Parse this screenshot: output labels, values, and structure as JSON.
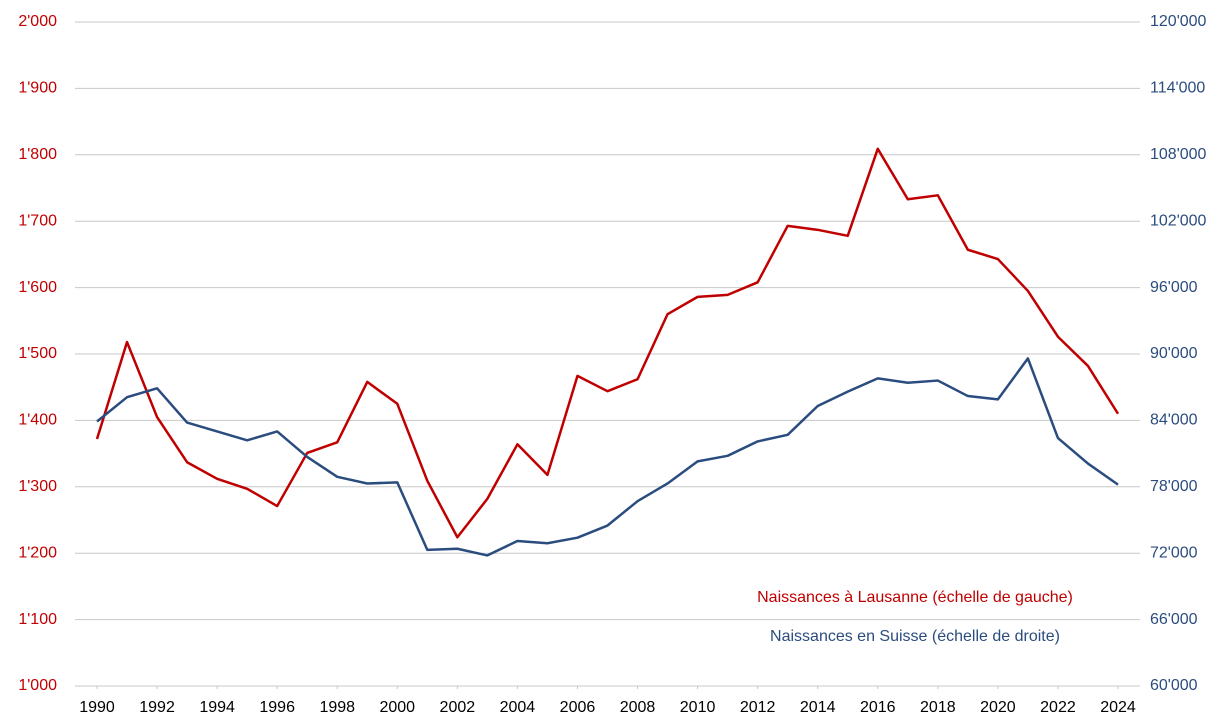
{
  "chart_data": {
    "type": "line",
    "x": [
      1990,
      1991,
      1992,
      1993,
      1994,
      1995,
      1996,
      1997,
      1998,
      1999,
      2000,
      2001,
      2002,
      2003,
      2004,
      2005,
      2006,
      2007,
      2008,
      2009,
      2010,
      2011,
      2012,
      2013,
      2014,
      2015,
      2016,
      2017,
      2018,
      2019,
      2020,
      2021,
      2022,
      2023,
      2024
    ],
    "xlim": [
      1990,
      2024
    ],
    "xticks": [
      1990,
      1992,
      1994,
      1996,
      1998,
      2000,
      2002,
      2004,
      2006,
      2008,
      2010,
      2012,
      2014,
      2016,
      2018,
      2020,
      2022,
      2024
    ],
    "ylim": [
      1000,
      2000
    ],
    "yticks": [
      {
        "value": 1000,
        "label": "1'000"
      },
      {
        "value": 1100,
        "label": "1'100"
      },
      {
        "value": 1200,
        "label": "1'200"
      },
      {
        "value": 1300,
        "label": "1'300"
      },
      {
        "value": 1400,
        "label": "1'400"
      },
      {
        "value": 1500,
        "label": "1'500"
      },
      {
        "value": 1600,
        "label": "1'600"
      },
      {
        "value": 1700,
        "label": "1'700"
      },
      {
        "value": 1800,
        "label": "1'800"
      },
      {
        "value": 1900,
        "label": "1'900"
      },
      {
        "value": 2000,
        "label": "2'000"
      }
    ],
    "y2lim": [
      60000,
      120000
    ],
    "y2ticks": [
      {
        "value": 60000,
        "label": "60'000"
      },
      {
        "value": 66000,
        "label": "66'000"
      },
      {
        "value": 72000,
        "label": "72'000"
      },
      {
        "value": 78000,
        "label": "78'000"
      },
      {
        "value": 84000,
        "label": "84'000"
      },
      {
        "value": 90000,
        "label": "90'000"
      },
      {
        "value": 96000,
        "label": "96'000"
      },
      {
        "value": 102000,
        "label": "102'000"
      },
      {
        "value": 108000,
        "label": "108'000"
      },
      {
        "value": 114000,
        "label": "114'000"
      },
      {
        "value": 120000,
        "label": "120'000"
      }
    ],
    "grid": true,
    "series": [
      {
        "name": "Naissances à Lausanne (échelle de gauche)",
        "color": "#c00000",
        "values": [
          1372,
          1518,
          1405,
          1337,
          1312,
          1297,
          1271,
          1351,
          1367,
          1458,
          1425,
          1309,
          1224,
          1282,
          1364,
          1318,
          1467,
          1444,
          1462,
          1560,
          1586,
          1589,
          1608,
          1693,
          1687,
          1678,
          1809,
          1733,
          1739,
          1657,
          1643,
          1595,
          1526,
          1482,
          1410
        ]
      },
      {
        "name": "Naissances en Suisse (échelle de droite)",
        "color": "#2b4c7e",
        "axis": "y2",
        "values": [
          83900,
          86100,
          86900,
          83800,
          83000,
          82200,
          83000,
          80700,
          78900,
          78300,
          78400,
          72300,
          72400,
          71800,
          73100,
          72900,
          73400,
          74500,
          76700,
          78300,
          80300,
          80800,
          82100,
          82700,
          85300,
          86600,
          87800,
          87400,
          87600,
          86200,
          85900,
          89600,
          82400,
          80100,
          78200
        ]
      }
    ]
  }
}
